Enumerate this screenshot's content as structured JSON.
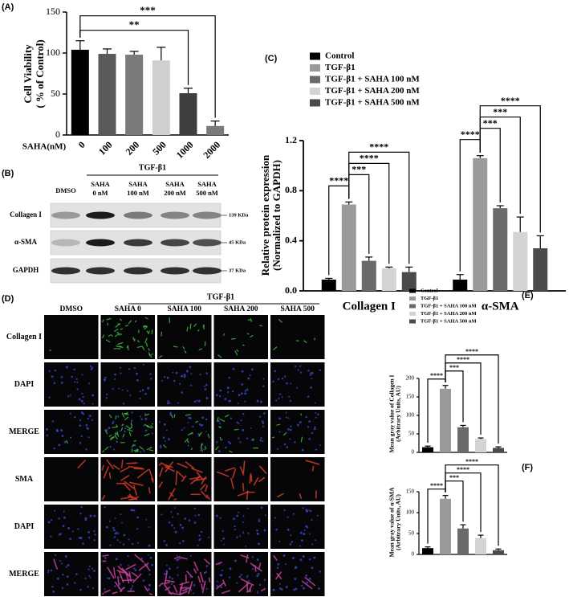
{
  "chart_data": [
    {
      "type": "bar",
      "panel": "(A)",
      "y_label": [
        "Cell Viability",
        "( % of Control)"
      ],
      "x_label": "SAHA(nM)",
      "categories": [
        "0",
        "100",
        "200",
        "500",
        "1000",
        "2000"
      ],
      "values": [
        104,
        99,
        98,
        91,
        51,
        11
      ],
      "errors": [
        11,
        6,
        4,
        16,
        6,
        6
      ],
      "colors": [
        "#000000",
        "#5a5a5a",
        "#7a7a7a",
        "#cfcfcf",
        "#3f3f3f",
        "#7a7a7a"
      ],
      "ylim": [
        0,
        150
      ],
      "yticks": [
        0,
        50,
        100,
        150
      ],
      "brackets": [
        {
          "pair": [
            0,
            4
          ],
          "label": "**"
        },
        {
          "pair": [
            0,
            5
          ],
          "label": "***"
        }
      ]
    },
    {
      "type": "grouped_bar",
      "panel": "(C)",
      "y_label": [
        "Relative protein expression",
        "(Normalized to GAPDH)"
      ],
      "categories": [
        "Collagen I",
        "α-SMA"
      ],
      "series": [
        {
          "name": "Control",
          "color": "#000000",
          "values": [
            0.09,
            0.09
          ],
          "errors": [
            0.01,
            0.04
          ]
        },
        {
          "name": "TGF-β1",
          "color": "#9a9a9a",
          "values": [
            0.69,
            1.06
          ],
          "errors": [
            0.02,
            0.02
          ]
        },
        {
          "name": "TGF-β1 + SAHA 100 nM",
          "color": "#6a6a6a",
          "values": [
            0.24,
            0.66
          ],
          "errors": [
            0.03,
            0.02
          ]
        },
        {
          "name": "TGF-β1 + SAHA 200 nM",
          "color": "#d4d4d4",
          "values": [
            0.18,
            0.47
          ],
          "errors": [
            0.01,
            0.12
          ]
        },
        {
          "name": "TGF-β1 + SAHA 500 nM",
          "color": "#4a4a4a",
          "values": [
            0.15,
            0.34
          ],
          "errors": [
            0.04,
            0.1
          ]
        }
      ],
      "ylim": [
        0,
        1.2
      ],
      "yticks": [
        {
          "value": 0,
          "label": "0.0"
        },
        0.4,
        0.8,
        1.2
      ],
      "brackets": [
        [
          {
            "pair": [
              0,
              1
            ],
            "label": "****"
          },
          {
            "pair": [
              1,
              2
            ],
            "label": "***"
          },
          {
            "pair": [
              1,
              3
            ],
            "label": "****"
          },
          {
            "pair": [
              1,
              4
            ],
            "label": "****"
          }
        ],
        [
          {
            "pair": [
              0,
              1
            ],
            "label": "****"
          },
          {
            "pair": [
              1,
              2
            ],
            "label": "***"
          },
          {
            "pair": [
              1,
              3
            ],
            "label": "***"
          },
          {
            "pair": [
              1,
              4
            ],
            "label": "****"
          }
        ]
      ]
    },
    {
      "type": "grouped_bar",
      "panel": "(E)",
      "y_label": [
        "Mean gray value of Collagen I",
        "(Arbitrary Units, AU)"
      ],
      "categories": [
        null
      ],
      "series": [
        {
          "name": "Control",
          "color": "#000000",
          "values": [
            14
          ],
          "errors": [
            3
          ]
        },
        {
          "name": "TGF-β1",
          "color": "#9a9a9a",
          "values": [
            172
          ],
          "errors": [
            9
          ]
        },
        {
          "name": "TGF-β1 + SAHA 100 nM",
          "color": "#6a6a6a",
          "values": [
            68
          ],
          "errors": [
            5
          ]
        },
        {
          "name": "TGF-β1 + SAHA 200 nM",
          "color": "#d4d4d4",
          "values": [
            36
          ],
          "errors": [
            3
          ]
        },
        {
          "name": "TGF-β1 + SAHA 500 nM",
          "color": "#4a4a4a",
          "values": [
            12
          ],
          "errors": [
            3
          ]
        }
      ],
      "ylim": [
        0,
        200
      ],
      "yticks": [
        0,
        50,
        100,
        150,
        200
      ],
      "brackets": [
        [
          {
            "pair": [
              0,
              1
            ],
            "label": "****"
          },
          {
            "pair": [
              1,
              2
            ],
            "label": "***"
          },
          {
            "pair": [
              1,
              3
            ],
            "label": "****"
          },
          {
            "pair": [
              1,
              4
            ],
            "label": "****"
          }
        ]
      ]
    },
    {
      "type": "bar",
      "panel": "(F)",
      "y_label": [
        "Mean gray value of α-SMA",
        "(Arbitrary Units, AU)"
      ],
      "categories": [
        null,
        null,
        null,
        null,
        null
      ],
      "values": [
        15,
        133,
        62,
        39,
        10
      ],
      "errors": [
        3,
        8,
        9,
        7,
        3
      ],
      "colors": [
        "#000000",
        "#9a9a9a",
        "#6a6a6a",
        "#d4d4d4",
        "#4a4a4a"
      ],
      "ylim": [
        0,
        150
      ],
      "yticks": [
        0,
        50,
        100,
        150
      ],
      "brackets": [
        {
          "pair": [
            0,
            1
          ],
          "label": "****"
        },
        {
          "pair": [
            1,
            2
          ],
          "label": "***"
        },
        {
          "pair": [
            1,
            3
          ],
          "label": "****"
        },
        {
          "pair": [
            1,
            4
          ],
          "label": "****"
        }
      ]
    }
  ],
  "blot": {
    "panel": "(B)",
    "header": "TGF-β1",
    "lanes": [
      [
        "DMSO"
      ],
      [
        "SAHA",
        "0 nM"
      ],
      [
        "SAHA",
        "100 nM"
      ],
      [
        "SAHA",
        "200 nM"
      ],
      [
        "SAHA",
        "500 nM"
      ]
    ],
    "rows": [
      {
        "label": "Collagen I",
        "size": "139 KDa"
      },
      {
        "label": "α-SMA",
        "size": "45 KDa"
      },
      {
        "label": "GAPDH",
        "size": "37 KDa"
      }
    ]
  },
  "micrograph": {
    "panel": "(D)",
    "header": "TGF-β1",
    "columns": [
      "DMSO",
      "SAHA 0",
      "SAHA 100",
      "SAHA 200",
      "SAHA 500"
    ],
    "rows": [
      "Collagen I",
      "DAPI",
      "MERGE",
      "SMA",
      "DAPI",
      "MERGE"
    ]
  }
}
